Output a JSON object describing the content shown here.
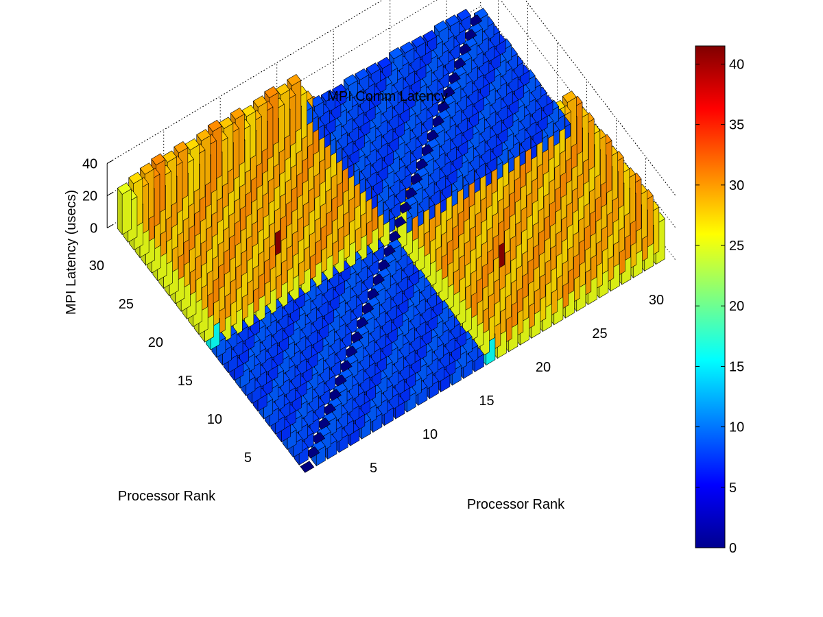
{
  "chart_data": {
    "type": "bar3",
    "title": "MPI Comm Latency",
    "xlabel": "Processor Rank",
    "ylabel": "Processor Rank",
    "zlabel": "MPI Latency (usecs)",
    "x_range": [
      1,
      32
    ],
    "y_range": [
      1,
      32
    ],
    "zlim": [
      0,
      40
    ],
    "x_ticks": [
      5,
      10,
      15,
      20,
      25,
      30
    ],
    "y_ticks": [
      5,
      10,
      15,
      20,
      25,
      30
    ],
    "z_ticks": [
      0,
      20,
      40
    ],
    "colormap": "jet",
    "colorbar": {
      "limits": [
        0,
        41.5
      ],
      "ticks": [
        0,
        5,
        10,
        15,
        20,
        25,
        30,
        35,
        40
      ],
      "location": "right"
    },
    "grid": true,
    "blocks": [
      {
        "name": "intra-node ranks 1-16 x 1-16",
        "ranks_x": [
          1,
          16
        ],
        "ranks_y": [
          1,
          16
        ],
        "latency_usecs": 8,
        "diagonal_latency_usecs": 0
      },
      {
        "name": "intra-node ranks 17-32 x 17-32",
        "ranks_x": [
          17,
          32
        ],
        "ranks_y": [
          17,
          32
        ],
        "latency_usecs": 8,
        "diagonal_latency_usecs": 0
      },
      {
        "name": "inter-node ranks 17-32 x 1-16",
        "ranks_x": [
          17,
          32
        ],
        "ranks_y": [
          1,
          16
        ],
        "latency_usecs": 29,
        "edge_row_latency_usecs": 25,
        "corner_latency_usecs": 16
      },
      {
        "name": "inter-node ranks 1-16 x 17-32",
        "ranks_x": [
          1,
          16
        ],
        "ranks_y": [
          17,
          32
        ],
        "latency_usecs": 29,
        "edge_row_latency_usecs": 25,
        "corner_latency_usecs": 16
      }
    ],
    "outliers": [
      {
        "x": 22,
        "y": 9,
        "latency_usecs": 41
      },
      {
        "x": 9,
        "y": 22,
        "latency_usecs": 41
      }
    ]
  }
}
